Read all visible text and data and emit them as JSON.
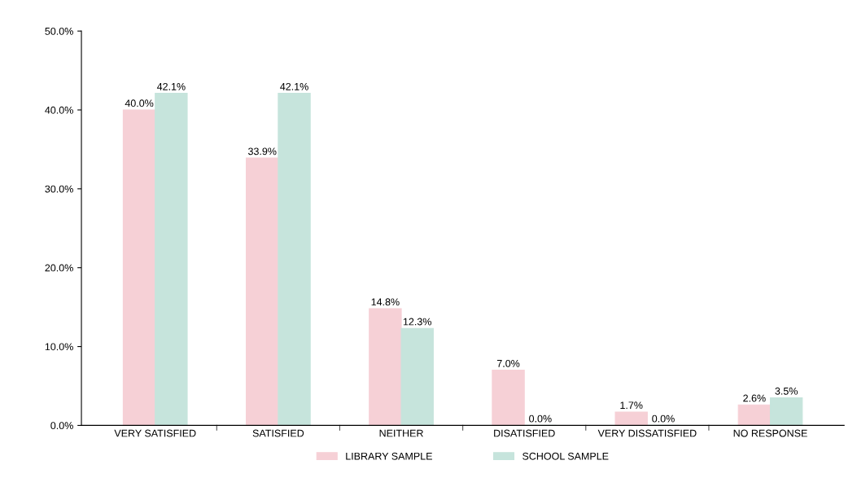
{
  "chart_data": {
    "type": "bar",
    "categories": [
      "VERY SATISFIED",
      "SATISFIED",
      "NEITHER",
      "DISATISFIED",
      "VERY DISSATISFIED",
      "NO RESPONSE"
    ],
    "series": [
      {
        "name": "LIBRARY SAMPLE",
        "color": "#f6d0d6",
        "values": [
          40.0,
          33.9,
          14.8,
          7.0,
          1.7,
          2.6
        ],
        "value_labels": [
          "40.0%",
          "33.9%",
          "14.8%",
          "7.0%",
          "1.7%",
          "2.6%"
        ]
      },
      {
        "name": "SCHOOL SAMPLE",
        "color": "#c6e4dc",
        "values": [
          42.1,
          42.1,
          12.3,
          0.0,
          0.0,
          3.5
        ],
        "value_labels": [
          "42.1%",
          "42.1%",
          "12.3%",
          "0.0%",
          "0.0%",
          "3.5%"
        ]
      }
    ],
    "ylim": [
      0,
      50
    ],
    "yticks": [
      {
        "value": 0,
        "label": "0.0%"
      },
      {
        "value": 10,
        "label": "10.0%"
      },
      {
        "value": 20,
        "label": "20.0%"
      },
      {
        "value": 30,
        "label": "30.0%"
      },
      {
        "value": 40,
        "label": "40.0%"
      },
      {
        "value": 50,
        "label": "50.0%"
      }
    ],
    "grid": false,
    "legend": "bottom"
  }
}
